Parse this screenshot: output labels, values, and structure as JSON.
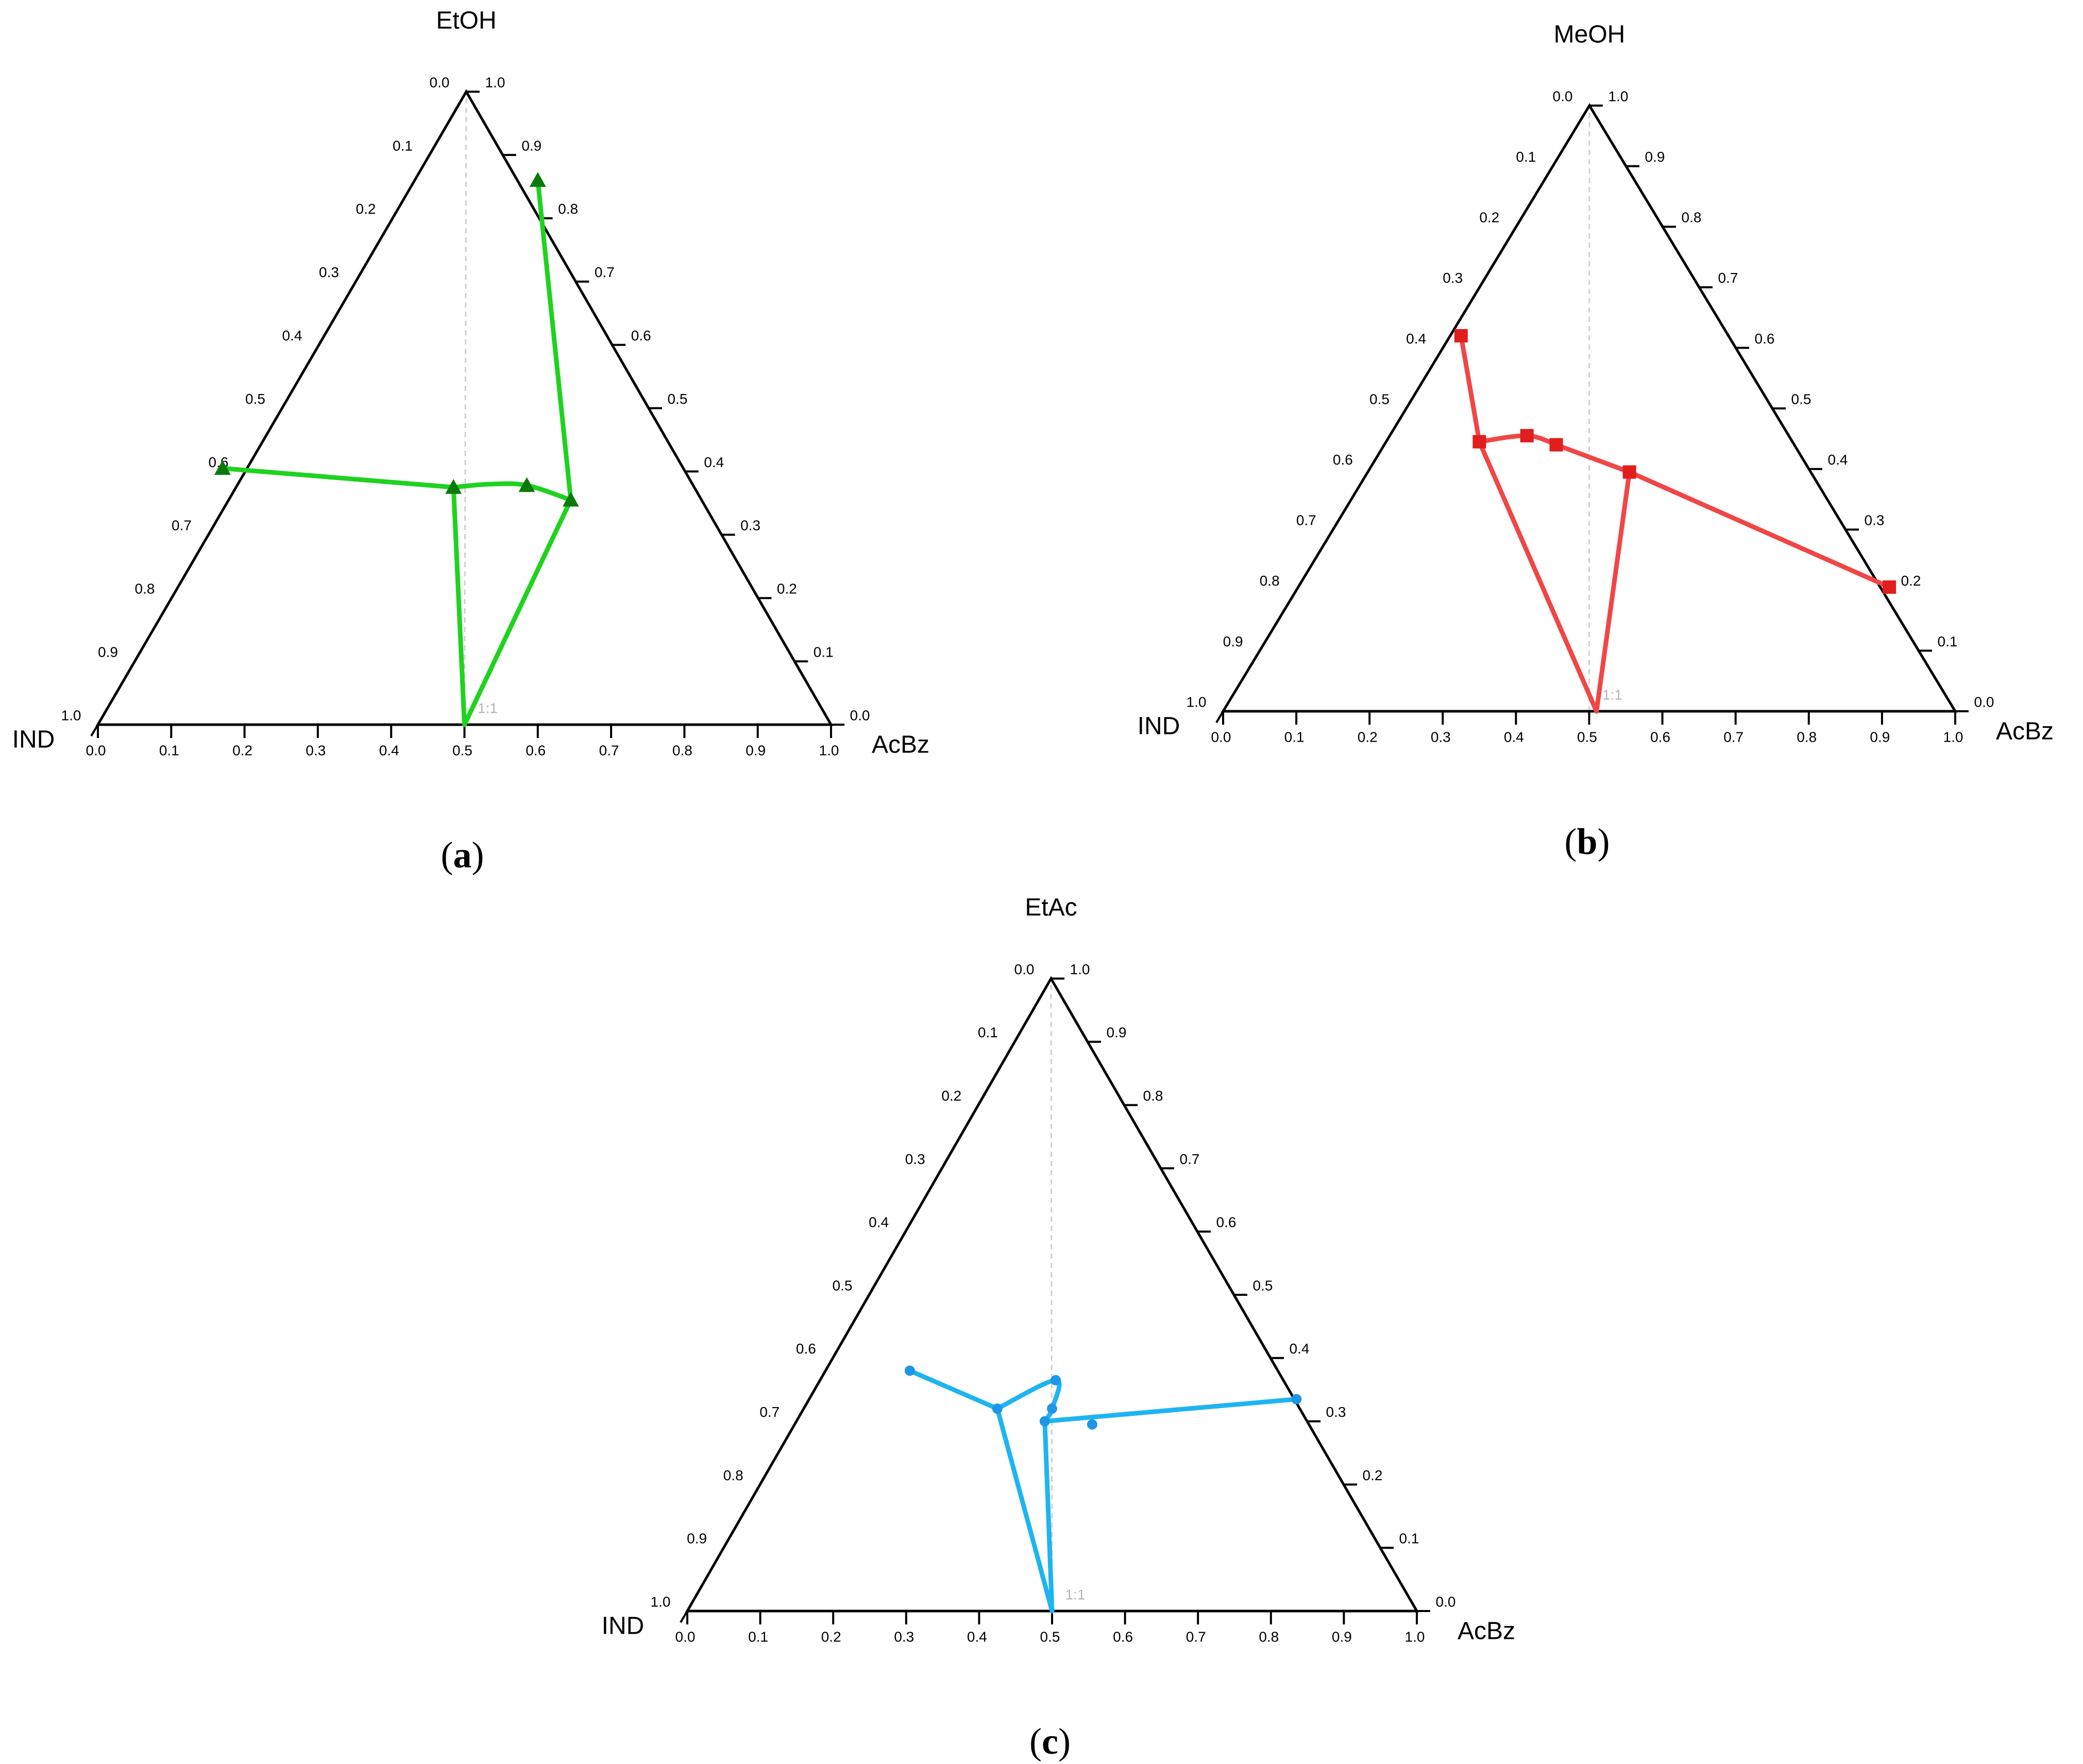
{
  "chart_data": [
    {
      "type": "ternary",
      "panel_label": "a",
      "top_vertex_label": "EtOH",
      "left_vertex_label": "IND",
      "right_vertex_label": "AcBz",
      "ratio_label": "1:1",
      "color": "#1fd21f",
      "marker": "triangle",
      "marker_color": "#0a7a0a",
      "ticks": [
        "0.0",
        "0.1",
        "0.2",
        "0.3",
        "0.4",
        "0.5",
        "0.6",
        "0.7",
        "0.8",
        "0.9",
        "1.0"
      ],
      "points": [
        {
          "x": 0.17,
          "y": 0.405
        },
        {
          "x": 0.485,
          "y": 0.375
        },
        {
          "x": 0.585,
          "y": 0.378
        },
        {
          "x": 0.645,
          "y": 0.355
        },
        {
          "x": 0.6,
          "y": 0.86
        }
      ],
      "series": [
        {
          "x": [
            0.5,
            0.485
          ],
          "y": [
            0.0,
            0.375
          ],
          "smooth": false
        },
        {
          "x": [
            0.17,
            0.485
          ],
          "y": [
            0.405,
            0.375
          ],
          "smooth": false
        },
        {
          "x": [
            0.485,
            0.535,
            0.585,
            0.645
          ],
          "y": [
            0.375,
            0.38,
            0.378,
            0.355
          ],
          "smooth": true
        },
        {
          "x": [
            0.645,
            0.6
          ],
          "y": [
            0.355,
            0.86
          ],
          "smooth": false
        },
        {
          "x": [
            0.645,
            0.5
          ],
          "y": [
            0.355,
            0.0
          ],
          "smooth": false
        }
      ]
    },
    {
      "type": "ternary",
      "panel_label": "b",
      "top_vertex_label": "MeOH",
      "left_vertex_label": "IND",
      "right_vertex_label": "AcBz",
      "ratio_label": "1:1",
      "color": "#f04646",
      "marker": "square",
      "marker_color": "#e01e1e",
      "ticks": [
        "0.0",
        "0.1",
        "0.2",
        "0.3",
        "0.4",
        "0.5",
        "0.6",
        "0.7",
        "0.8",
        "0.9",
        "1.0"
      ],
      "points": [
        {
          "x": 0.325,
          "y": 0.62
        },
        {
          "x": 0.35,
          "y": 0.445
        },
        {
          "x": 0.415,
          "y": 0.455
        },
        {
          "x": 0.455,
          "y": 0.44
        },
        {
          "x": 0.555,
          "y": 0.395
        },
        {
          "x": 0.91,
          "y": 0.205
        }
      ],
      "series": [
        {
          "x": [
            0.51,
            0.35
          ],
          "y": [
            0.0,
            0.445
          ],
          "smooth": false
        },
        {
          "x": [
            0.35,
            0.325
          ],
          "y": [
            0.445,
            0.62
          ],
          "smooth": false
        },
        {
          "x": [
            0.35,
            0.415,
            0.455
          ],
          "y": [
            0.445,
            0.455,
            0.44
          ],
          "smooth": true
        },
        {
          "x": [
            0.455,
            0.555,
            0.91
          ],
          "y": [
            0.44,
            0.395,
            0.205
          ],
          "smooth": false
        },
        {
          "x": [
            0.555,
            0.51
          ],
          "y": [
            0.395,
            0.0
          ],
          "smooth": false
        }
      ]
    },
    {
      "type": "ternary",
      "panel_label": "c",
      "top_vertex_label": "EtAc",
      "left_vertex_label": "IND",
      "right_vertex_label": "AcBz",
      "ratio_label": "1:1",
      "color": "#1eb4f0",
      "marker": "circle",
      "marker_color": "#1e96e6",
      "ticks": [
        "0.0",
        "0.1",
        "0.2",
        "0.3",
        "0.4",
        "0.5",
        "0.6",
        "0.7",
        "0.8",
        "0.9",
        "1.0"
      ],
      "points": [
        {
          "x": 0.305,
          "y": 0.38
        },
        {
          "x": 0.425,
          "y": 0.32
        },
        {
          "x": 0.505,
          "y": 0.365
        },
        {
          "x": 0.5,
          "y": 0.32
        },
        {
          "x": 0.49,
          "y": 0.3
        },
        {
          "x": 0.555,
          "y": 0.295
        },
        {
          "x": 0.835,
          "y": 0.335
        }
      ],
      "series": [
        {
          "x": [
            0.305,
            0.425
          ],
          "y": [
            0.38,
            0.32
          ],
          "smooth": false
        },
        {
          "x": [
            0.425,
            0.505,
            0.5,
            0.49
          ],
          "y": [
            0.32,
            0.365,
            0.32,
            0.3
          ],
          "smooth": true
        },
        {
          "x": [
            0.49,
            0.835
          ],
          "y": [
            0.3,
            0.335
          ],
          "smooth": false
        },
        {
          "x": [
            0.425,
            0.5
          ],
          "y": [
            0.32,
            0.0
          ],
          "smooth": false
        },
        {
          "x": [
            0.49,
            0.5
          ],
          "y": [
            0.3,
            0.0
          ],
          "smooth": false
        }
      ]
    }
  ]
}
